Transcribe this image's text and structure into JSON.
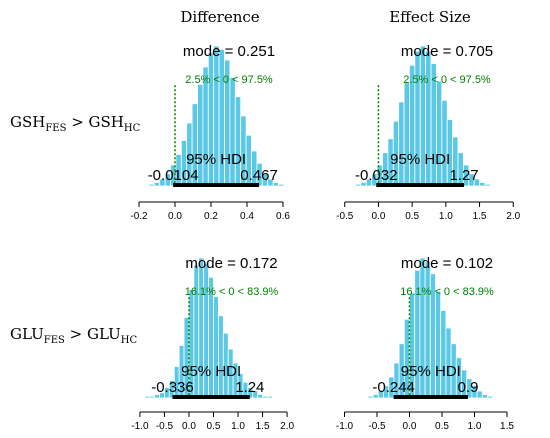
{
  "column_titles": [
    "Difference",
    "Effect Size"
  ],
  "row_labels": [
    {
      "left": "GSH",
      "left_sub": "FES",
      "op": " > ",
      "right": "GSH",
      "right_sub": "HC"
    },
    {
      "left": "GLU",
      "left_sub": "FES",
      "op": " > ",
      "right": "GLU",
      "right_sub": "HC"
    }
  ],
  "colors": {
    "bars": "#5bc8e6",
    "bar_edge": "#ffffff",
    "hdi": "#000000",
    "comp": "#008000"
  },
  "chart_data": [
    {
      "type": "bar",
      "panel": "GSH Difference",
      "xticks": [
        -0.2,
        0.0,
        0.2,
        0.4,
        0.6
      ],
      "xtick_labels": [
        "-0.2",
        "0.0",
        "0.2",
        "0.4",
        "0.6"
      ],
      "xlim": [
        -0.25,
        0.65
      ],
      "mode_label": "mode = 0.251",
      "comp_label": "2.5% < 0 < 97.5%",
      "hdi_label": "95% HDI",
      "hdi": [
        -0.0104,
        0.467
      ],
      "hdi_labels": [
        "-0.0104",
        "0.467"
      ],
      "bins": [
        -0.13,
        -0.1,
        -0.07,
        -0.04,
        -0.01,
        0.02,
        0.05,
        0.08,
        0.11,
        0.14,
        0.17,
        0.2,
        0.23,
        0.26,
        0.29,
        0.32,
        0.35,
        0.38,
        0.41,
        0.44,
        0.47,
        0.5,
        0.53,
        0.56,
        0.59
      ],
      "density": [
        1,
        2,
        4,
        7,
        12,
        18,
        26,
        36,
        47,
        58,
        68,
        76,
        80,
        78,
        72,
        62,
        51,
        40,
        29,
        20,
        13,
        7,
        4,
        2,
        1
      ]
    },
    {
      "type": "bar",
      "panel": "GSH Effect Size",
      "xticks": [
        -0.5,
        0.0,
        0.5,
        1.0,
        1.5,
        2.0
      ],
      "xtick_labels": [
        "-0.5",
        "0.0",
        "0.5",
        "1.0",
        "1.5",
        "2.0"
      ],
      "xlim": [
        -0.6,
        2.1
      ],
      "mode_label": "mode = 0.705",
      "comp_label": "2.5% < 0 < 97.5%",
      "hdi_label": "95% HDI",
      "hdi": [
        -0.032,
        1.27
      ],
      "hdi_labels": [
        "-0.032",
        "1.27"
      ],
      "bins": [
        -0.3,
        -0.22,
        -0.14,
        -0.06,
        0.02,
        0.1,
        0.18,
        0.26,
        0.34,
        0.42,
        0.5,
        0.58,
        0.66,
        0.74,
        0.82,
        0.9,
        0.98,
        1.06,
        1.14,
        1.22,
        1.3,
        1.38,
        1.46,
        1.54,
        1.62
      ],
      "density": [
        1,
        2,
        4,
        7,
        12,
        19,
        27,
        37,
        48,
        59,
        69,
        77,
        80,
        77,
        70,
        60,
        49,
        38,
        28,
        19,
        12,
        7,
        4,
        2,
        1
      ]
    },
    {
      "type": "bar",
      "panel": "GLU Difference",
      "xticks": [
        -1.0,
        -0.5,
        0.0,
        0.5,
        1.0,
        1.5,
        2.0
      ],
      "xtick_labels": [
        "-1.0",
        "-0.5",
        "0.0",
        "0.5",
        "1.0",
        "1.5",
        "2.0"
      ],
      "xlim": [
        -1.1,
        2.1
      ],
      "mode_label": "mode = 0.172",
      "comp_label": "16.1% < 0 < 83.9%",
      "hdi_label": "95% HDI",
      "hdi": [
        -0.336,
        1.24
      ],
      "hdi_labels": [
        "-0.336",
        "1.24"
      ],
      "bins": [
        -0.85,
        -0.75,
        -0.65,
        -0.55,
        -0.45,
        -0.35,
        -0.25,
        -0.15,
        -0.05,
        0.05,
        0.15,
        0.25,
        0.35,
        0.45,
        0.55,
        0.65,
        0.75,
        0.85,
        0.95,
        1.05,
        1.15,
        1.25,
        1.35,
        1.45,
        1.55,
        1.65
      ],
      "density": [
        1,
        1,
        2,
        3,
        6,
        10,
        18,
        30,
        46,
        62,
        76,
        80,
        77,
        69,
        58,
        47,
        37,
        28,
        20,
        14,
        9,
        6,
        4,
        2,
        1,
        1
      ]
    },
    {
      "type": "bar",
      "panel": "GLU Effect Size",
      "xticks": [
        -1.0,
        -0.5,
        0.0,
        0.5,
        1.0,
        1.5
      ],
      "xtick_labels": [
        "-1.0",
        "-0.5",
        "0.0",
        "0.5",
        "1.0",
        "1.5"
      ],
      "xlim": [
        -1.1,
        1.7
      ],
      "mode_label": "mode = 0.102",
      "comp_label": "16.1% < 0 < 83.9%",
      "hdi_label": "95% HDI",
      "hdi": [
        -0.244,
        0.9
      ],
      "hdi_labels": [
        "-0.244",
        "0.9"
      ],
      "bins": [
        -0.6,
        -0.52,
        -0.44,
        -0.36,
        -0.28,
        -0.2,
        -0.12,
        -0.04,
        0.04,
        0.12,
        0.2,
        0.28,
        0.36,
        0.44,
        0.52,
        0.6,
        0.68,
        0.76,
        0.84,
        0.92,
        1.0,
        1.08,
        1.16,
        1.24
      ],
      "density": [
        1,
        2,
        4,
        7,
        12,
        20,
        31,
        45,
        60,
        73,
        80,
        78,
        71,
        61,
        50,
        40,
        31,
        23,
        16,
        11,
        7,
        4,
        2,
        1
      ]
    }
  ]
}
